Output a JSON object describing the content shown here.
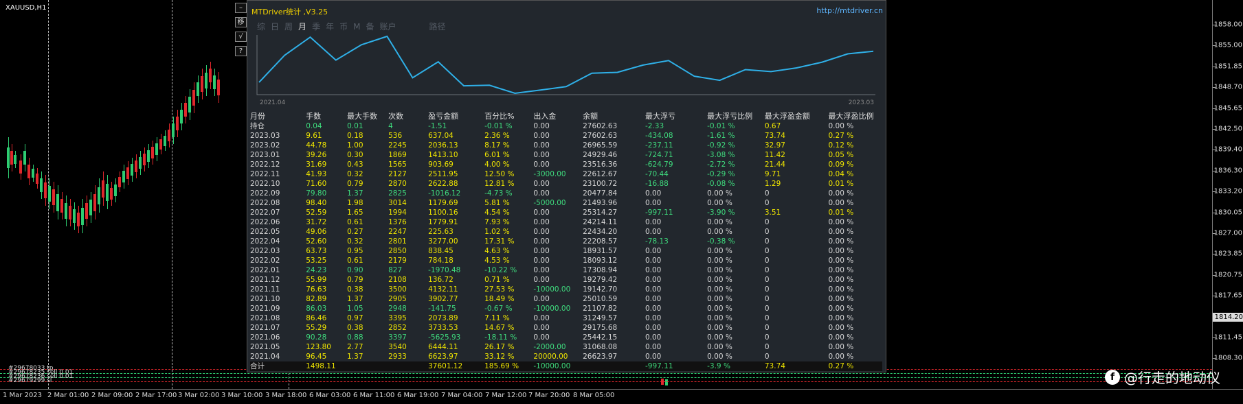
{
  "chart": {
    "symbol_title": "XAUUSD,H1",
    "price_ticks": [
      "1858.00",
      "1855.00",
      "1851.85",
      "1848.70",
      "1845.65",
      "1842.50",
      "1839.40",
      "1836.30",
      "1833.20",
      "1830.05",
      "1827.00",
      "1823.85",
      "1820.75",
      "1817.65",
      "1814.50",
      "1811.45",
      "1808.30"
    ],
    "current_price": "1814.20",
    "time_ticks": [
      "1 Mar 2023",
      "2 Mar 01:00",
      "2 Mar 09:00",
      "2 Mar 17:00",
      "3 Mar 02:00",
      "3 Mar 10:00",
      "3 Mar 18:00",
      "6 Mar 03:00",
      "6 Mar 11:00",
      "6 Mar 19:00",
      "7 Mar 04:00",
      "7 Mar 12:00",
      "7 Mar 20:00",
      "8 Mar 05:00"
    ],
    "order_labels": [
      "#29678033 tp",
      "#29678235 sell 0.01",
      "#29678236 sell 0.01",
      "#29679299 sl"
    ],
    "bull_color": "#2ecc71",
    "bear_color": "#e0282c"
  },
  "side_buttons": [
    {
      "icon": "minus-icon",
      "glyph": "–"
    },
    {
      "icon": "move-icon",
      "glyph": "移"
    },
    {
      "icon": "check-icon",
      "glyph": "√"
    },
    {
      "icon": "help-icon",
      "glyph": "?"
    }
  ],
  "panel": {
    "title": "MTDriver统计 ,V3.25",
    "url": "http://mtdriver.cn",
    "tabs": [
      "综",
      "日",
      "周",
      "月",
      "季",
      "年",
      "币",
      "M",
      "备",
      "账户",
      "路径"
    ],
    "active_tab": "月",
    "equity": {
      "start_label": "2021.04",
      "end_label": "2023.03",
      "line_color": "#2fb0e8"
    },
    "columns": [
      "月份",
      "手数",
      "最大手数",
      "次数",
      "盈亏金额",
      "百分比%",
      "出入金",
      "余额",
      "最大浮亏",
      "最大浮亏比例",
      "最大浮盈金额",
      "最大浮盈比例"
    ],
    "rows": [
      [
        "持仓",
        "0.04",
        "0.01",
        "4",
        "-1.51",
        "-0.01 %",
        "0.00",
        "27602.63",
        "-2.33",
        "-0.01 %",
        "0.67",
        "0.00 %"
      ],
      [
        "2023.03",
        "9.61",
        "0.18",
        "536",
        "637.04",
        "2.36 %",
        "0.00",
        "27602.63",
        "-434.08",
        "-1.61 %",
        "73.74",
        "0.27 %"
      ],
      [
        "2023.02",
        "44.78",
        "1.00",
        "2245",
        "2036.13",
        "8.17 %",
        "0.00",
        "26965.59",
        "-237.11",
        "-0.92 %",
        "32.97",
        "0.12 %"
      ],
      [
        "2023.01",
        "39.26",
        "0.30",
        "1869",
        "1413.10",
        "6.01 %",
        "0.00",
        "24929.46",
        "-724.71",
        "-3.08 %",
        "11.42",
        "0.05 %"
      ],
      [
        "2022.12",
        "31.69",
        "0.43",
        "1565",
        "903.69",
        "4.00 %",
        "0.00",
        "23516.36",
        "-624.79",
        "-2.72 %",
        "21.44",
        "0.09 %"
      ],
      [
        "2022.11",
        "41.93",
        "0.32",
        "2127",
        "2511.95",
        "12.50 %",
        "-3000.00",
        "22612.67",
        "-70.44",
        "-0.29 %",
        "9.71",
        "0.04 %"
      ],
      [
        "2022.10",
        "71.60",
        "0.79",
        "2870",
        "2622.88",
        "12.81 %",
        "0.00",
        "23100.72",
        "-16.88",
        "-0.08 %",
        "1.29",
        "0.01 %"
      ],
      [
        "2022.09",
        "79.80",
        "1.37",
        "2825",
        "-1016.12",
        "-4.73 %",
        "0.00",
        "20477.84",
        "0.00",
        "0.00 %",
        "0",
        "0.00 %"
      ],
      [
        "2022.08",
        "98.40",
        "1.98",
        "3014",
        "1179.69",
        "5.81 %",
        "-5000.00",
        "21493.96",
        "0.00",
        "0.00 %",
        "0",
        "0.00 %"
      ],
      [
        "2022.07",
        "52.59",
        "1.65",
        "1994",
        "1100.16",
        "4.54 %",
        "0.00",
        "25314.27",
        "-997.11",
        "-3.90 %",
        "3.51",
        "0.01 %"
      ],
      [
        "2022.06",
        "31.72",
        "0.61",
        "1376",
        "1779.91",
        "7.93 %",
        "0.00",
        "24214.11",
        "0.00",
        "0.00 %",
        "0",
        "0.00 %"
      ],
      [
        "2022.05",
        "49.06",
        "0.27",
        "2247",
        "225.63",
        "1.02 %",
        "0.00",
        "22434.20",
        "0.00",
        "0.00 %",
        "0",
        "0.00 %"
      ],
      [
        "2022.04",
        "52.60",
        "0.32",
        "2801",
        "3277.00",
        "17.31 %",
        "0.00",
        "22208.57",
        "-78.13",
        "-0.38 %",
        "0",
        "0.00 %"
      ],
      [
        "2022.03",
        "63.73",
        "0.95",
        "2850",
        "838.45",
        "4.63 %",
        "0.00",
        "18931.57",
        "0.00",
        "0.00 %",
        "0",
        "0.00 %"
      ],
      [
        "2022.02",
        "53.25",
        "0.61",
        "2179",
        "784.18",
        "4.53 %",
        "0.00",
        "18093.12",
        "0.00",
        "0.00 %",
        "0",
        "0.00 %"
      ],
      [
        "2022.01",
        "24.23",
        "0.90",
        "827",
        "-1970.48",
        "-10.22 %",
        "0.00",
        "17308.94",
        "0.00",
        "0.00 %",
        "0",
        "0.00 %"
      ],
      [
        "2021.12",
        "55.99",
        "0.79",
        "2108",
        "136.72",
        "0.71 %",
        "0.00",
        "19279.42",
        "0.00",
        "0.00 %",
        "0",
        "0.00 %"
      ],
      [
        "2021.11",
        "76.63",
        "0.38",
        "3500",
        "4132.11",
        "27.53 %",
        "-10000.00",
        "19142.70",
        "0.00",
        "0.00 %",
        "0",
        "0.00 %"
      ],
      [
        "2021.10",
        "82.89",
        "1.37",
        "2905",
        "3902.77",
        "18.49 %",
        "0.00",
        "25010.59",
        "0.00",
        "0.00 %",
        "0",
        "0.00 %"
      ],
      [
        "2021.09",
        "86.03",
        "1.05",
        "2948",
        "-141.75",
        "-0.67 %",
        "-10000.00",
        "21107.82",
        "0.00",
        "0.00 %",
        "0",
        "0.00 %"
      ],
      [
        "2021.08",
        "86.46",
        "0.97",
        "3395",
        "2073.89",
        "7.11 %",
        "0.00",
        "31249.57",
        "0.00",
        "0.00 %",
        "0",
        "0.00 %"
      ],
      [
        "2021.07",
        "55.29",
        "0.38",
        "2852",
        "3733.53",
        "14.67 %",
        "0.00",
        "29175.68",
        "0.00",
        "0.00 %",
        "0",
        "0.00 %"
      ],
      [
        "2021.06",
        "90.28",
        "0.88",
        "3397",
        "-5625.93",
        "-18.11 %",
        "0.00",
        "25442.15",
        "0.00",
        "0.00 %",
        "0",
        "0.00 %"
      ],
      [
        "2021.05",
        "123.80",
        "2.77",
        "3540",
        "6444.11",
        "26.17 %",
        "-2000.00",
        "31068.08",
        "0.00",
        "0.00 %",
        "0",
        "0.00 %"
      ],
      [
        "2021.04",
        "96.45",
        "1.37",
        "2933",
        "6623.97",
        "33.12 %",
        "20000.00",
        "26623.97",
        "0.00",
        "0.00 %",
        "0",
        "0.00 %"
      ]
    ],
    "total": [
      "合计",
      "1498.11",
      "",
      "",
      "37601.12",
      "185.69 %",
      "-10000.00",
      "",
      "-997.11",
      "-3.9 %",
      "73.74",
      "0.27 %"
    ]
  },
  "watermark": {
    "logo_glyph": "f",
    "text": "@行走的地动仪"
  }
}
